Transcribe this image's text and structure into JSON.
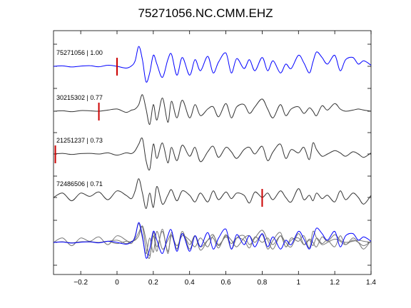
{
  "chart_data": {
    "type": "line",
    "title": "75271056.NC.CMM.EHZ",
    "xlabel": "",
    "ylabel": "",
    "xlim": [
      -0.35,
      1.4
    ],
    "xticks": [
      -0.2,
      0,
      0.2,
      0.4,
      0.6,
      0.8,
      1,
      1.2,
      1.4
    ],
    "xtick_labels": [
      "−0.2",
      "0",
      "0.2",
      "0.4",
      "0.6",
      "0.8",
      "1",
      "1.2",
      "1.4"
    ],
    "grid": false,
    "series": [
      {
        "name": "75271056 | 1.00",
        "color": "#0000ff",
        "pick_time": 0.0,
        "x": [
          -0.35,
          -0.3,
          -0.25,
          -0.2,
          -0.15,
          -0.1,
          -0.05,
          0,
          0.05,
          0.08,
          0.1,
          0.12,
          0.14,
          0.16,
          0.18,
          0.2,
          0.22,
          0.25,
          0.28,
          0.3,
          0.33,
          0.36,
          0.4,
          0.43,
          0.46,
          0.5,
          0.53,
          0.56,
          0.6,
          0.63,
          0.66,
          0.7,
          0.73,
          0.76,
          0.8,
          0.83,
          0.86,
          0.9,
          0.93,
          0.96,
          1.0,
          1.03,
          1.06,
          1.08,
          1.1,
          1.13,
          1.16,
          1.2,
          1.23,
          1.26,
          1.3,
          1.33,
          1.36,
          1.4
        ],
        "y": [
          0,
          0.02,
          -0.03,
          0.01,
          0.03,
          -0.02,
          0.05,
          0,
          -0.08,
          0.02,
          0.25,
          0.9,
          0.3,
          -0.7,
          -0.3,
          0.5,
          0.1,
          -0.5,
          0.3,
          0.55,
          -0.4,
          0.4,
          -0.4,
          0.3,
          -0.2,
          0.45,
          -0.3,
          0.2,
          0.6,
          -0.3,
          0.35,
          -0.1,
          0.3,
          -0.2,
          0.4,
          -0.2,
          0.25,
          -0.3,
          0.1,
          -0.1,
          0.5,
          0.15,
          -0.3,
          0.2,
          0.65,
          0.4,
          0.1,
          0.5,
          -0.2,
          0.3,
          0.4,
          0.1,
          0.25,
          0.05
        ]
      },
      {
        "name": "30215302 | 0.77",
        "color": "#333333",
        "pick_time": -0.1,
        "x": [
          -0.35,
          -0.3,
          -0.25,
          -0.2,
          -0.15,
          -0.1,
          -0.05,
          0,
          0.05,
          0.08,
          0.1,
          0.12,
          0.14,
          0.16,
          0.18,
          0.2,
          0.22,
          0.25,
          0.28,
          0.3,
          0.33,
          0.36,
          0.4,
          0.43,
          0.46,
          0.5,
          0.53,
          0.56,
          0.6,
          0.63,
          0.66,
          0.7,
          0.73,
          0.76,
          0.8,
          0.83,
          0.86,
          0.9,
          0.93,
          0.96,
          1.0,
          1.03,
          1.06,
          1.08,
          1.1,
          1.13,
          1.16,
          1.2,
          1.23,
          1.26,
          1.3,
          1.33,
          1.36,
          1.4
        ],
        "y": [
          0,
          0.02,
          -0.02,
          0.03,
          0.02,
          0,
          0.05,
          0.1,
          -0.05,
          0.05,
          0.1,
          0.3,
          0.75,
          0.1,
          -0.6,
          0.3,
          -0.4,
          0.6,
          -0.5,
          0.45,
          -0.3,
          0.5,
          -0.3,
          0.3,
          -0.2,
          0.1,
          0.2,
          -0.25,
          0.35,
          -0.3,
          0.2,
          0.3,
          -0.1,
          0.2,
          0.55,
          0.1,
          -0.3,
          0.3,
          -0.2,
          0.1,
          0.2,
          -0.1,
          0.15,
          0.0,
          -0.2,
          0.25,
          0.05,
          0.35,
          0.1,
          0.0,
          0.05,
          0.1,
          0.05,
          0.0
        ]
      },
      {
        "name": "21251237 | 0.73",
        "color": "#333333",
        "pick_time": -0.34,
        "x": [
          -0.35,
          -0.3,
          -0.25,
          -0.2,
          -0.15,
          -0.1,
          -0.05,
          0,
          0.05,
          0.08,
          0.1,
          0.12,
          0.14,
          0.16,
          0.18,
          0.2,
          0.22,
          0.25,
          0.28,
          0.3,
          0.33,
          0.36,
          0.4,
          0.43,
          0.46,
          0.5,
          0.53,
          0.56,
          0.6,
          0.63,
          0.66,
          0.7,
          0.73,
          0.76,
          0.8,
          0.83,
          0.86,
          0.9,
          0.93,
          0.96,
          1.0,
          1.03,
          1.06,
          1.08,
          1.1,
          1.13,
          1.16,
          1.2,
          1.23,
          1.26,
          1.3,
          1.33,
          1.36,
          1.4
        ],
        "y": [
          0,
          0.03,
          -0.02,
          0.02,
          0.03,
          0.0,
          0.05,
          -0.05,
          0.05,
          0.02,
          0.15,
          0.45,
          0.7,
          -0.3,
          -0.7,
          0.45,
          -0.2,
          0.5,
          -0.4,
          0.3,
          -0.3,
          0.4,
          -0.1,
          0.3,
          -0.35,
          0.1,
          0.35,
          -0.15,
          0.3,
          0.1,
          -0.2,
          0.2,
          0.3,
          0.0,
          0.35,
          -0.3,
          0.1,
          0.45,
          -0.2,
          0.2,
          0.05,
          0.3,
          -0.25,
          0.5,
          0.2,
          -0.1,
          0.0,
          0.15,
          0.05,
          -0.1,
          0.1,
          0.0,
          -0.15,
          0.05
        ]
      },
      {
        "name": "72486506 | 0.71",
        "color": "#333333",
        "pick_time": 0.8,
        "x": [
          -0.35,
          -0.3,
          -0.25,
          -0.2,
          -0.15,
          -0.1,
          -0.05,
          0,
          0.05,
          0.08,
          0.1,
          0.12,
          0.14,
          0.16,
          0.18,
          0.2,
          0.22,
          0.25,
          0.28,
          0.3,
          0.33,
          0.36,
          0.4,
          0.43,
          0.46,
          0.5,
          0.53,
          0.56,
          0.6,
          0.63,
          0.66,
          0.7,
          0.73,
          0.76,
          0.8,
          0.83,
          0.86,
          0.9,
          0.93,
          0.96,
          1.0,
          1.03,
          1.06,
          1.08,
          1.1,
          1.13,
          1.16,
          1.2,
          1.23,
          1.26,
          1.3,
          1.33,
          1.36,
          1.4
        ],
        "y": [
          0,
          0.2,
          -0.15,
          0.2,
          0.05,
          0.25,
          -0.1,
          0.3,
          0.1,
          -0.05,
          0.3,
          0.85,
          0.2,
          -0.5,
          0.2,
          -0.45,
          0.5,
          -0.3,
          0.1,
          0.35,
          -0.15,
          0.3,
          0.1,
          -0.2,
          0.2,
          -0.2,
          0.3,
          -0.1,
          0.25,
          -0.05,
          0.2,
          0.1,
          -0.25,
          0.25,
          0.0,
          0.2,
          -0.1,
          0.3,
          0.0,
          -0.2,
          0.4,
          -0.1,
          0.1,
          -0.15,
          0.2,
          -0.05,
          0.1,
          -0.2,
          0.3,
          -0.1,
          0.2,
          0.0,
          -0.3,
          0.1
        ]
      }
    ],
    "overlay_colors": [
      "#0000ff",
      "#777777",
      "#777777",
      "#777777"
    ],
    "pick_color": "#cc0000"
  }
}
